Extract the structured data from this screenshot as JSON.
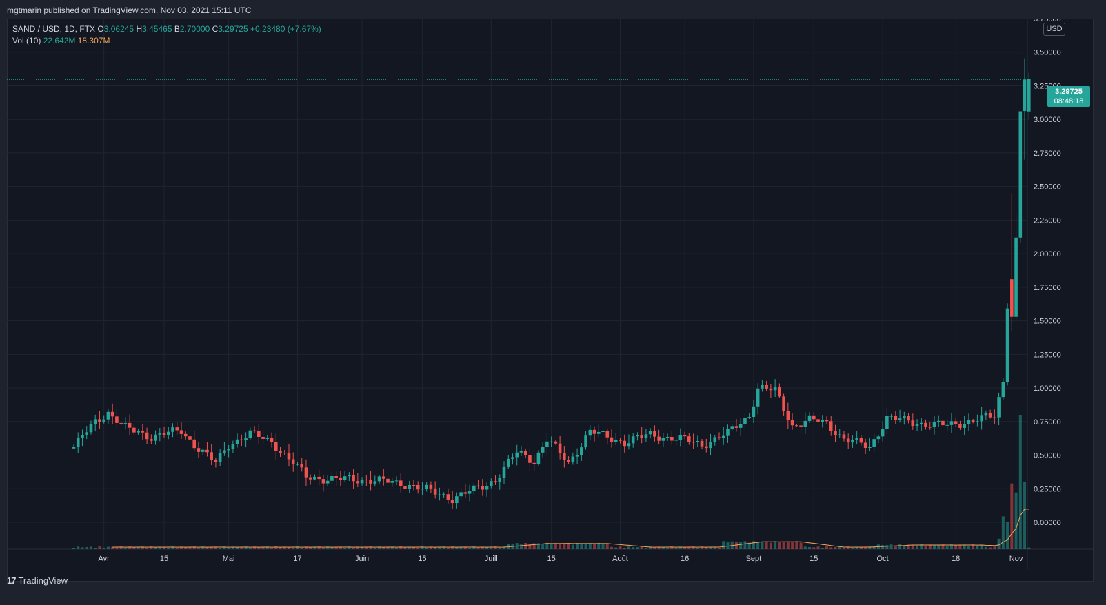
{
  "header": {
    "published": "mgtmarin published on TradingView.com, Nov 03, 2021 15:11 UTC"
  },
  "legend": {
    "symbol": "SAND / USD, 1D, FTX",
    "o_label": "O",
    "o_value": "3.06245",
    "h_label": "H",
    "h_value": "3.45465",
    "l_label": "B",
    "l_value": "2.70000",
    "c_label": "C",
    "c_value": "3.29725",
    "change": "+0.23480 (+7.67%)",
    "vol_label": "Vol (10)",
    "vol_value": "22.642M",
    "vol_ma_value": "18.307M"
  },
  "currency_button": "USD",
  "price_tag": {
    "price": "3.29725",
    "countdown": "08:48:18"
  },
  "brand": {
    "logo": "17",
    "name": "TradingView",
    "icon": "tradingview-logo-icon"
  },
  "colors": {
    "up": "#26a69a",
    "down": "#ef5350",
    "vol_ma": "#f7a55d",
    "bg": "#131722",
    "grid": "#1f2431",
    "text": "#d1d4dc"
  },
  "chart_data": {
    "type": "candlestick",
    "series_name": "SAND / USD",
    "interval": "1D",
    "exchange": "FTX",
    "price_range": [
      -0.2,
      3.75
    ],
    "y_ticks": [
      "3.75000",
      "3.50000",
      "3.25000",
      "3.00000",
      "2.75000",
      "2.50000",
      "2.25000",
      "2.00000",
      "1.75000",
      "1.50000",
      "1.25000",
      "1.00000",
      "0.75000",
      "0.50000",
      "0.25000",
      "0.00000"
    ],
    "y_tick_values": [
      3.75,
      3.5,
      3.25,
      3.0,
      2.75,
      2.5,
      2.25,
      2.0,
      1.75,
      1.5,
      1.25,
      1.0,
      0.75,
      0.5,
      0.25,
      0.0
    ],
    "x_tick_labels": [
      "Avr",
      "15",
      "Mai",
      "17",
      "Juin",
      "15",
      "Juill",
      "15",
      "Août",
      "16",
      "Sept",
      "15",
      "Oct",
      "18",
      "Nov"
    ],
    "x_tick_index": [
      7,
      21,
      36,
      52,
      67,
      81,
      97,
      111,
      127,
      142,
      158,
      172,
      188,
      205,
      219
    ],
    "last_price": 3.29725,
    "volume_ma_period": 10,
    "volume_last": 22.642,
    "volume_ma_last": 18.307,
    "volume_unit": "M",
    "anchors": [
      [
        0,
        0.56
      ],
      [
        5,
        0.75
      ],
      [
        8,
        0.82
      ],
      [
        12,
        0.7
      ],
      [
        18,
        0.64
      ],
      [
        25,
        0.68
      ],
      [
        28,
        0.58
      ],
      [
        33,
        0.44
      ],
      [
        36,
        0.58
      ],
      [
        41,
        0.66
      ],
      [
        46,
        0.6
      ],
      [
        51,
        0.44
      ],
      [
        54,
        0.34
      ],
      [
        60,
        0.32
      ],
      [
        68,
        0.32
      ],
      [
        78,
        0.28
      ],
      [
        84,
        0.22
      ],
      [
        88,
        0.18
      ],
      [
        94,
        0.25
      ],
      [
        98,
        0.32
      ],
      [
        103,
        0.52
      ],
      [
        107,
        0.46
      ],
      [
        110,
        0.62
      ],
      [
        115,
        0.44
      ],
      [
        120,
        0.68
      ],
      [
        123,
        0.64
      ],
      [
        128,
        0.6
      ],
      [
        134,
        0.65
      ],
      [
        141,
        0.62
      ],
      [
        146,
        0.58
      ],
      [
        152,
        0.66
      ],
      [
        157,
        0.8
      ],
      [
        159,
        1.0
      ],
      [
        163,
        0.98
      ],
      [
        167,
        0.72
      ],
      [
        171,
        0.76
      ],
      [
        175,
        0.74
      ],
      [
        179,
        0.62
      ],
      [
        185,
        0.56
      ],
      [
        189,
        0.78
      ],
      [
        196,
        0.74
      ],
      [
        203,
        0.72
      ],
      [
        209,
        0.76
      ],
      [
        214,
        0.79
      ],
      [
        216,
        1.05
      ],
      [
        217,
        1.6
      ],
      [
        218,
        1.67
      ],
      [
        219,
        1.6
      ],
      [
        220,
        2.1
      ],
      [
        221,
        3.06
      ],
      [
        222,
        3.3
      ]
    ],
    "spikes": [
      {
        "i": 218,
        "o": 1.81,
        "h": 2.45,
        "l": 1.42,
        "c": 1.53
      },
      {
        "i": 219,
        "o": 1.53,
        "h": 2.3,
        "l": 1.5,
        "c": 2.12
      },
      {
        "i": 220,
        "o": 2.12,
        "h": 2.42,
        "l": 2.08,
        "c": 3.06
      },
      {
        "i": 221,
        "o": 3.06245,
        "h": 3.45465,
        "l": 2.7,
        "c": 3.29725
      }
    ],
    "volume_spikes": [
      {
        "i": 215,
        "v": 3.5
      },
      {
        "i": 216,
        "v": 11
      },
      {
        "i": 217,
        "v": 9
      },
      {
        "i": 218,
        "v": 22
      },
      {
        "i": 219,
        "v": 19
      },
      {
        "i": 220,
        "v": 45
      },
      {
        "i": 221,
        "v": 22.642
      }
    ]
  }
}
